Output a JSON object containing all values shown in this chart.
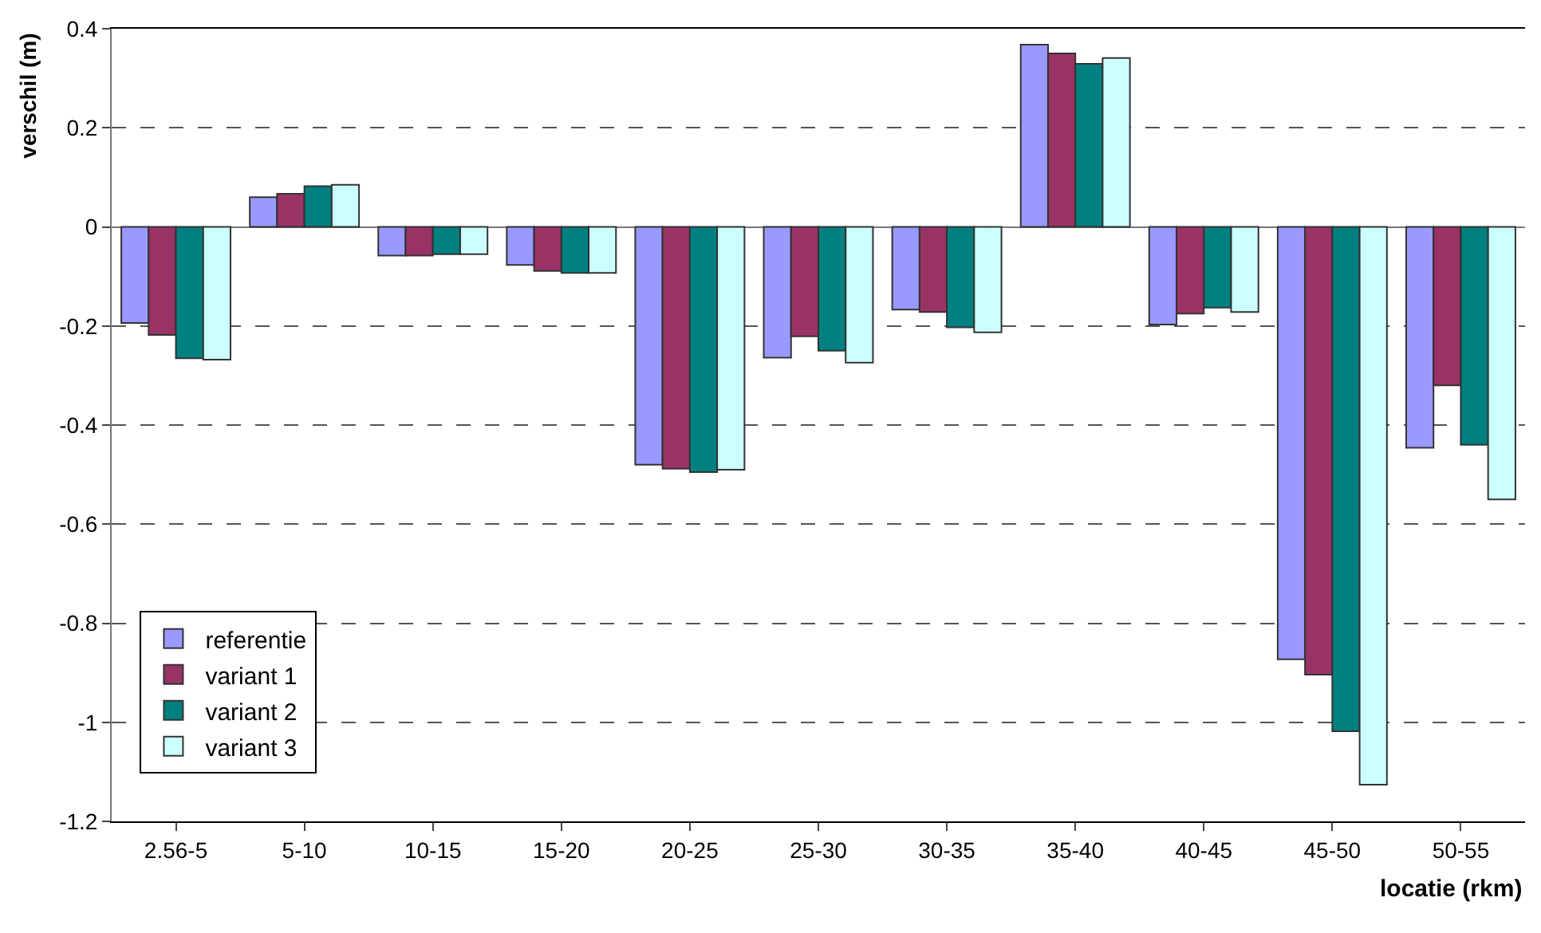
{
  "chart_data": {
    "type": "bar",
    "xlabel": "locatie (rkm)",
    "ylabel": "verschil (m)",
    "categories": [
      "2.56-5",
      "5-10",
      "10-15",
      "15-20",
      "20-25",
      "25-30",
      "30-35",
      "35-40",
      "40-45",
      "45-50",
      "50-55"
    ],
    "series": [
      {
        "name": "referentie",
        "color": "#9999ff",
        "values": [
          -0.194,
          0.06,
          -0.058,
          -0.077,
          -0.48,
          -0.264,
          -0.167,
          0.368,
          -0.197,
          -0.873,
          -0.446
        ]
      },
      {
        "name": "variant 1",
        "color": "#993366",
        "values": [
          -0.218,
          0.067,
          -0.058,
          -0.089,
          -0.488,
          -0.221,
          -0.172,
          0.35,
          -0.175,
          -0.904,
          -0.32
        ]
      },
      {
        "name": "variant 2",
        "color": "#008080",
        "values": [
          -0.265,
          0.082,
          -0.055,
          -0.093,
          -0.495,
          -0.25,
          -0.203,
          0.329,
          -0.163,
          -1.018,
          -0.44
        ]
      },
      {
        "name": "variant 3",
        "color": "#ccffff",
        "values": [
          -0.268,
          0.085,
          -0.055,
          -0.093,
          -0.49,
          -0.274,
          -0.213,
          0.341,
          -0.172,
          -1.126,
          -0.55
        ]
      }
    ],
    "ylim": [
      -1.2,
      0.4
    ],
    "yticks": [
      -1.2,
      -1,
      -0.8,
      -0.6,
      -0.4,
      -0.2,
      0,
      0.2,
      0.4
    ],
    "grid": "y",
    "legend": "bottom left"
  }
}
